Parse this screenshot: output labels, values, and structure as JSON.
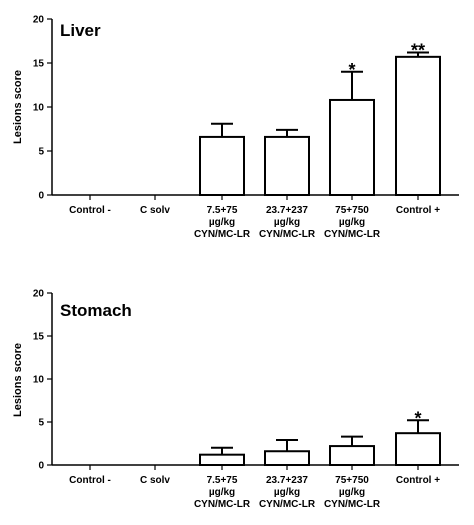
{
  "chart_data": [
    {
      "type": "bar",
      "title": "Liver",
      "ylabel": "Lesions score",
      "xlabel": "",
      "ylim": [
        0,
        20
      ],
      "yticks": [
        0,
        5,
        10,
        15,
        20
      ],
      "categories": [
        [
          "Control -"
        ],
        [
          "C solv"
        ],
        [
          "7.5+75",
          "µg/kg",
          "CYN/MC-LR"
        ],
        [
          "23.7+237",
          "µg/kg",
          "CYN/MC-LR"
        ],
        [
          "75+750",
          "µg/kg",
          "CYN/MC-LR"
        ],
        [
          "Control +"
        ]
      ],
      "values": [
        0,
        0,
        6.6,
        6.6,
        10.8,
        15.7
      ],
      "errors": [
        0,
        0,
        1.5,
        0.8,
        3.2,
        0.5
      ],
      "significance": [
        "",
        "",
        "",
        "",
        "*",
        "**"
      ],
      "bar_fill": "#ffffff",
      "bar_stroke": "#000000"
    },
    {
      "type": "bar",
      "title": "Stomach",
      "ylabel": "Lesions score",
      "xlabel": "",
      "ylim": [
        0,
        20
      ],
      "yticks": [
        0,
        5,
        10,
        15,
        20
      ],
      "categories": [
        [
          "Control -"
        ],
        [
          "C solv"
        ],
        [
          "7.5+75",
          "µg/kg",
          "CYN/MC-LR"
        ],
        [
          "23.7+237",
          "µg/kg",
          "CYN/MC-LR"
        ],
        [
          "75+750",
          "µg/kg",
          "CYN/MC-LR"
        ],
        [
          "Control +"
        ]
      ],
      "values": [
        0,
        0,
        1.2,
        1.6,
        2.2,
        3.7
      ],
      "errors": [
        0,
        0,
        0.8,
        1.3,
        1.1,
        1.5
      ],
      "significance": [
        "",
        "",
        "",
        "",
        "",
        "*"
      ],
      "bar_fill": "#ffffff",
      "bar_stroke": "#000000"
    }
  ]
}
